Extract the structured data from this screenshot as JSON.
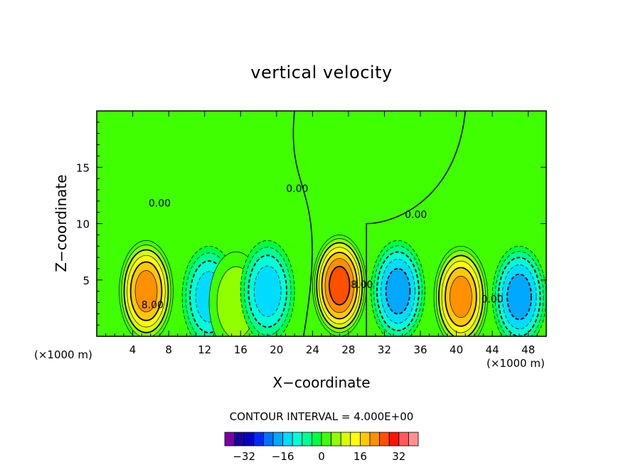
{
  "chart_data": {
    "type": "contour",
    "title": "vertical velocity",
    "xlabel": "X−coordinate",
    "ylabel": "Z−coordinate",
    "x_unit_left": "(×1000 m)",
    "x_unit_right": "(×1000 m)",
    "xlim": [
      0,
      50
    ],
    "ylim": [
      0,
      20
    ],
    "x_ticks": [
      4,
      8,
      12,
      16,
      20,
      24,
      28,
      32,
      36,
      40,
      44,
      48
    ],
    "y_ticks": [
      5,
      10,
      15
    ],
    "contour_labels": [
      {
        "text": "0.00",
        "x": 7,
        "z": 11.5
      },
      {
        "text": "0.00",
        "x": 22.3,
        "z": 12.8
      },
      {
        "text": "0.00",
        "x": 35.5,
        "z": 10.5
      },
      {
        "text": "0.00",
        "x": 44,
        "z": 3
      },
      {
        "text": "8.00",
        "x": 6.2,
        "z": 2.5
      },
      {
        "text": "8.00",
        "x": 29.5,
        "z": 4.3
      }
    ],
    "contour_interval_text": "CONTOUR INTERVAL = 4.000E+00",
    "colorbar": {
      "levels": [
        -36,
        -32,
        -28,
        -24,
        -20,
        -16,
        -12,
        -8,
        -4,
        0,
        4,
        8,
        12,
        16,
        20,
        24,
        28,
        32,
        36
      ],
      "tick_labels": [
        "−32",
        "−16",
        "0",
        "16",
        "32"
      ],
      "tick_values": [
        -32,
        -16,
        0,
        16,
        32
      ],
      "colors": [
        "#7a00a8",
        "#1a00a0",
        "#0000c8",
        "#0028ff",
        "#0070ff",
        "#00a8ff",
        "#00dcff",
        "#00ffd8",
        "#00ff90",
        "#00ff40",
        "#40ff00",
        "#90ff00",
        "#d8ff00",
        "#ffff00",
        "#ffc800",
        "#ff9000",
        "#ff5000",
        "#ff1400",
        "#ff5a5a",
        "#ff9090"
      ]
    },
    "features": [
      {
        "sign": "up",
        "x": 5.5,
        "z": 4.0,
        "peak": 20
      },
      {
        "sign": "down",
        "x": 12.5,
        "z": 3.5,
        "peak": -12
      },
      {
        "sign": "up",
        "x": 15.5,
        "z": 3.0,
        "peak": 4
      },
      {
        "sign": "down",
        "x": 19,
        "z": 4.0,
        "peak": -12
      },
      {
        "sign": "up",
        "x": 27,
        "z": 4.5,
        "peak": 24
      },
      {
        "sign": "down",
        "x": 33.5,
        "z": 4.0,
        "peak": -16
      },
      {
        "sign": "up",
        "x": 40.5,
        "z": 3.5,
        "peak": 20
      },
      {
        "sign": "down",
        "x": 47,
        "z": 3.5,
        "peak": -16
      }
    ]
  }
}
